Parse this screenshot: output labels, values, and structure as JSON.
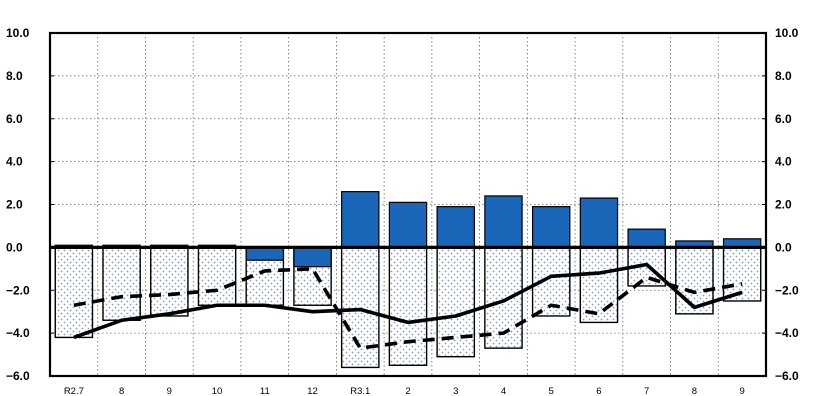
{
  "chart_data": {
    "type": "bar",
    "title": "",
    "xlabel": "",
    "ylabel": "",
    "ylim": [
      -6.0,
      10.0
    ],
    "ytick_step": 2.0,
    "yticks": [
      "10.0",
      "8.0",
      "6.0",
      "4.0",
      "2.0",
      "0.0",
      "−2.0",
      "−4.0",
      "−6.0"
    ],
    "categories": [
      "R2.7",
      "8",
      "9",
      "10",
      "11",
      "12",
      "R3.1",
      "2",
      "3",
      "4",
      "5",
      "6",
      "7",
      "8",
      "9"
    ],
    "grid": true,
    "legend": "none",
    "series": [
      {
        "kind": "bar",
        "fill": "#1a66b8",
        "values": [
          0.1,
          0.1,
          0.1,
          0.1,
          -0.6,
          -0.9,
          2.6,
          2.1,
          1.9,
          2.4,
          1.9,
          2.3,
          0.85,
          0.3,
          0.4
        ]
      },
      {
        "kind": "bar-dotted",
        "fill": "#cfdcec",
        "values": [
          -4.2,
          -3.4,
          -3.2,
          -2.7,
          -2.7,
          -2.7,
          -5.6,
          -5.5,
          -5.1,
          -4.7,
          -3.2,
          -3.5,
          -1.8,
          -3.1,
          -2.5
        ]
      },
      {
        "kind": "line-solid",
        "color": "#000000",
        "values": [
          -4.2,
          -3.4,
          -3.1,
          -2.7,
          -2.7,
          -3.0,
          -2.9,
          -3.5,
          -3.2,
          -2.5,
          -1.35,
          -1.2,
          -0.8,
          -2.8,
          -2.1
        ]
      },
      {
        "kind": "line-dashed",
        "color": "#000000",
        "values": [
          -2.7,
          -2.3,
          -2.2,
          -2.0,
          -1.1,
          -1.0,
          -4.7,
          -4.4,
          -4.2,
          -4.0,
          -2.7,
          -3.1,
          -1.4,
          -2.1,
          -1.7
        ]
      }
    ]
  }
}
